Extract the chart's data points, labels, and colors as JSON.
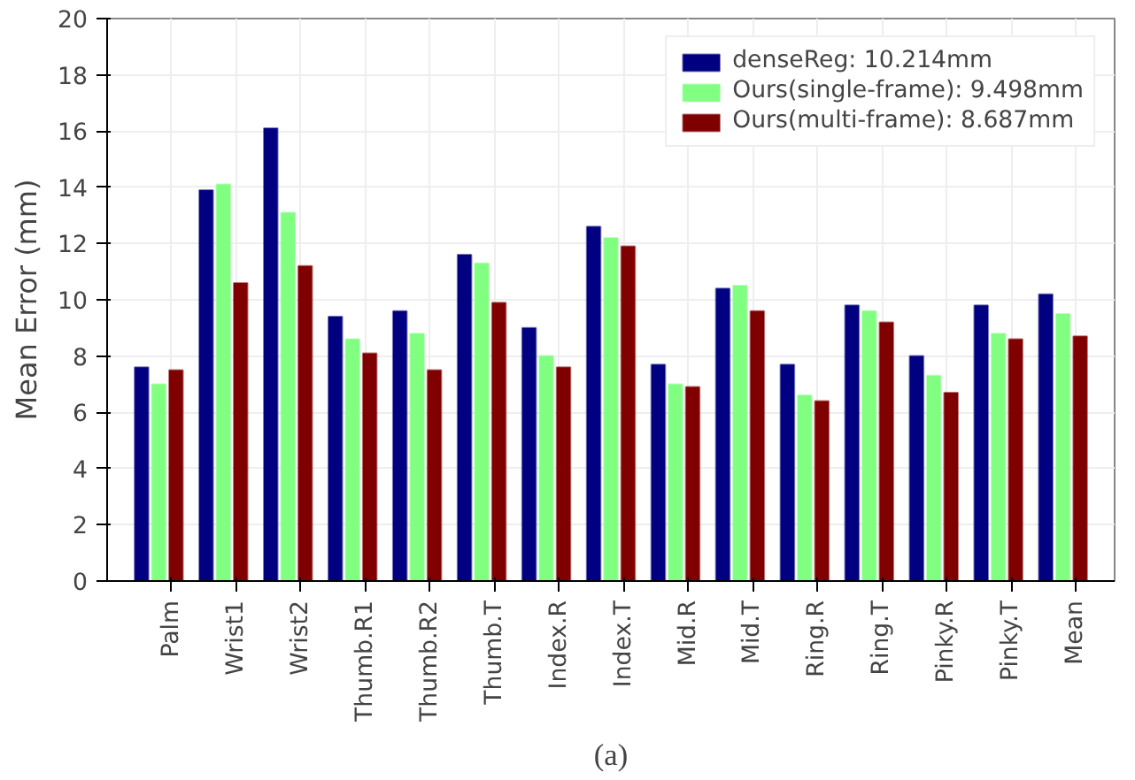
{
  "chart_data": {
    "type": "bar",
    "ylabel": "Mean Error (mm)",
    "categories": [
      "Palm",
      "Wrist1",
      "Wrist2",
      "Thumb.R1",
      "Thumb.R2",
      "Thumb.T",
      "Index.R",
      "Index.T",
      "Mid.R",
      "Mid.T",
      "Ring.R",
      "Ring.T",
      "Pinky.R",
      "Pinky.T",
      "Mean"
    ],
    "series": [
      {
        "name": "denseReg: 10.214mm",
        "color": "#000080",
        "values": [
          7.6,
          13.9,
          16.1,
          9.4,
          9.6,
          11.6,
          9.0,
          12.6,
          7.7,
          10.4,
          7.7,
          9.8,
          8.0,
          9.8,
          10.2
        ]
      },
      {
        "name": "Ours(single-frame): 9.498mm",
        "color": "#80ff80",
        "values": [
          7.0,
          14.1,
          13.1,
          8.6,
          8.8,
          11.3,
          8.0,
          12.2,
          7.0,
          10.5,
          6.6,
          9.6,
          7.3,
          8.8,
          9.5
        ]
      },
      {
        "name": "Ours(multi-frame): 8.687mm",
        "color": "#800000",
        "values": [
          7.5,
          10.6,
          11.2,
          8.1,
          7.5,
          9.9,
          7.6,
          11.9,
          6.9,
          9.6,
          6.4,
          9.2,
          6.7,
          8.6,
          8.7
        ]
      }
    ],
    "ylim": [
      0,
      20
    ],
    "yticks": [
      0,
      2,
      4,
      6,
      8,
      10,
      12,
      14,
      16,
      18,
      20
    ],
    "grid": true,
    "legend": "top right",
    "annotations": [
      "(a)"
    ]
  }
}
